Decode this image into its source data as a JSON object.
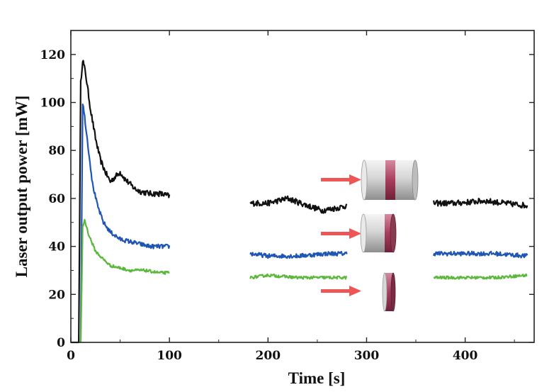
{
  "chart_data": {
    "type": "line",
    "title": "",
    "xlabel": "Time [s]",
    "ylabel": "Laser output power [mW]",
    "xlim": [
      0,
      470
    ],
    "ylim": [
      0,
      130
    ],
    "xticks": [
      0,
      100,
      200,
      300,
      400
    ],
    "yticks": [
      0,
      20,
      40,
      60,
      80,
      100,
      120
    ],
    "grid": false,
    "legend": "none",
    "series": [
      {
        "color": "#111111",
        "noise": 1.2,
        "segments": [
          [
            [
              0,
              0
            ],
            [
              8,
              0
            ],
            [
              10,
              108
            ],
            [
              12,
              118
            ],
            [
              15,
              112
            ],
            [
              20,
              97
            ],
            [
              25,
              85
            ],
            [
              30,
              76
            ],
            [
              35,
              71
            ],
            [
              40,
              67
            ],
            [
              45,
              69
            ],
            [
              50,
              71
            ],
            [
              55,
              68
            ],
            [
              60,
              66
            ],
            [
              65,
              64
            ],
            [
              70,
              63
            ],
            [
              80,
              62
            ],
            [
              90,
              62
            ],
            [
              100,
              61
            ]
          ],
          [
            [
              182,
              58
            ],
            [
              200,
              58
            ],
            [
              220,
              60
            ],
            [
              240,
              57
            ],
            [
              255,
              55
            ],
            [
              270,
              56
            ],
            [
              280,
              57
            ]
          ],
          [
            [
              368,
              58
            ],
            [
              390,
              58
            ],
            [
              420,
              59
            ],
            [
              440,
              58
            ],
            [
              463,
              57
            ]
          ]
        ]
      },
      {
        "color": "#1f55b5",
        "noise": 0.9,
        "segments": [
          [
            [
              10,
              0
            ],
            [
              12,
              100
            ],
            [
              14,
              94
            ],
            [
              18,
              80
            ],
            [
              22,
              66
            ],
            [
              27,
              57
            ],
            [
              33,
              50
            ],
            [
              40,
              46
            ],
            [
              50,
              43
            ],
            [
              60,
              42
            ],
            [
              70,
              41
            ],
            [
              80,
              40
            ],
            [
              90,
              40
            ],
            [
              100,
              40
            ]
          ],
          [
            [
              182,
              37
            ],
            [
              200,
              36
            ],
            [
              230,
              36
            ],
            [
              260,
              37
            ],
            [
              280,
              37
            ]
          ],
          [
            [
              368,
              37
            ],
            [
              400,
              37
            ],
            [
              430,
              37
            ],
            [
              463,
              36
            ]
          ]
        ]
      },
      {
        "color": "#5cb83c",
        "noise": 0.6,
        "segments": [
          [
            [
              10,
              0
            ],
            [
              11,
              22
            ],
            [
              12,
              48
            ],
            [
              14,
              51
            ],
            [
              18,
              45
            ],
            [
              25,
              38
            ],
            [
              32,
              35
            ],
            [
              40,
              32
            ],
            [
              50,
              31
            ],
            [
              60,
              30
            ],
            [
              75,
              30
            ],
            [
              90,
              29
            ],
            [
              100,
              29
            ]
          ],
          [
            [
              182,
              27
            ],
            [
              200,
              28
            ],
            [
              230,
              27
            ],
            [
              260,
              27
            ],
            [
              280,
              27
            ]
          ],
          [
            [
              368,
              27
            ],
            [
              400,
              27
            ],
            [
              430,
              27
            ],
            [
              463,
              28
            ]
          ]
        ]
      }
    ]
  },
  "annotations": {
    "arrow_color": "#ee5555",
    "cylinder_color": "#d4d4d4",
    "band_color": "#a83e5e"
  }
}
